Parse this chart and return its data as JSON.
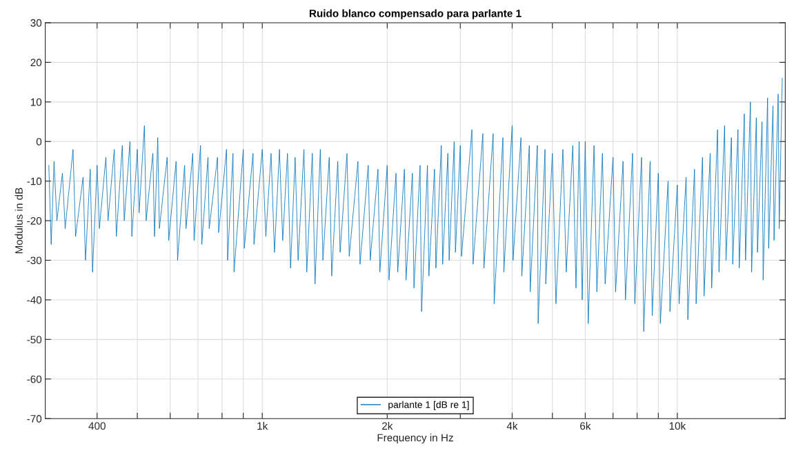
{
  "chart_data": {
    "type": "line",
    "title": "Ruido blanco compensado para parlante 1",
    "xlabel": "Frequency in Hz",
    "ylabel": "Modulus in dB",
    "log": "x",
    "grid": true,
    "legend": "bottom",
    "line_style": "solid",
    "marker": "none",
    "xlim": [
      300,
      18200
    ],
    "ylim": [
      -70,
      30
    ],
    "xticks": [
      {
        "value": 400,
        "label": "400"
      },
      {
        "value": 500,
        "label": null
      },
      {
        "value": 600,
        "label": null
      },
      {
        "value": 700,
        "label": null
      },
      {
        "value": 800,
        "label": null
      },
      {
        "value": 900,
        "label": null
      },
      {
        "value": 1000,
        "label": "1k"
      },
      {
        "value": 2000,
        "label": "2k"
      },
      {
        "value": 3000,
        "label": null
      },
      {
        "value": 4000,
        "label": "4k"
      },
      {
        "value": 5000,
        "label": null
      },
      {
        "value": 6000,
        "label": "6k"
      },
      {
        "value": 7000,
        "label": null
      },
      {
        "value": 8000,
        "label": null
      },
      {
        "value": 9000,
        "label": null
      },
      {
        "value": 10000,
        "label": "10k"
      }
    ],
    "yticks": [
      -70,
      -60,
      -50,
      -40,
      -30,
      -20,
      -10,
      0,
      10,
      20,
      30
    ],
    "series": [
      {
        "name": "parlante 1 [dB re 1]",
        "color": "#0072bd",
        "x": [
          306,
          310,
          315,
          320,
          330,
          335,
          350,
          355,
          370,
          375,
          385,
          390,
          400,
          405,
          420,
          425,
          440,
          445,
          460,
          465,
          480,
          485,
          500,
          505,
          520,
          525,
          545,
          550,
          560,
          565,
          590,
          595,
          620,
          625,
          650,
          655,
          680,
          685,
          710,
          715,
          740,
          745,
          780,
          785,
          820,
          825,
          850,
          855,
          900,
          905,
          950,
          955,
          1000,
          1020,
          1050,
          1070,
          1100,
          1120,
          1150,
          1170,
          1200,
          1220,
          1260,
          1280,
          1320,
          1340,
          1380,
          1400,
          1450,
          1470,
          1520,
          1540,
          1600,
          1620,
          1700,
          1720,
          1800,
          1820,
          1900,
          1920,
          2000,
          2020,
          2100,
          2120,
          2200,
          2220,
          2300,
          2320,
          2400,
          2420,
          2500,
          2520,
          2600,
          2620,
          2700,
          2720,
          2800,
          2820,
          2900,
          2920,
          3000,
          3020,
          3200,
          3220,
          3400,
          3420,
          3600,
          3620,
          3800,
          3820,
          4000,
          4020,
          4200,
          4220,
          4400,
          4420,
          4600,
          4620,
          4800,
          4820,
          5000,
          5100,
          5300,
          5400,
          5600,
          5700,
          5800,
          5900,
          6000,
          6100,
          6300,
          6400,
          6600,
          6700,
          7000,
          7100,
          7400,
          7500,
          7800,
          7900,
          8200,
          8300,
          8600,
          8700,
          9000,
          9100,
          9500,
          9600,
          10000,
          10100,
          10500,
          10600,
          11000,
          11100,
          11500,
          11600,
          12000,
          12100,
          12500,
          12600,
          13000,
          13100,
          13500,
          13600,
          14000,
          14100,
          14500,
          14600,
          15000,
          15100,
          15500,
          15600,
          16000,
          16100,
          16500,
          16600,
          17000,
          17100,
          17500,
          17600,
          17900
        ],
        "values": [
          -6,
          -26,
          -5,
          -20,
          -8,
          -22,
          -2,
          -24,
          -9,
          -30,
          -7,
          -33,
          -6,
          -22,
          -4,
          -20,
          -2,
          -24,
          -1,
          -20,
          0,
          -24,
          -2,
          -18,
          4,
          -20,
          -3,
          -24,
          1,
          -22,
          -4,
          -25,
          -5,
          -30,
          -6,
          -22,
          -3,
          -25,
          -1,
          -26,
          -4,
          -22,
          -4,
          -23,
          -2,
          -30,
          -3,
          -33,
          -2,
          -27,
          -3,
          -26,
          -2,
          -24,
          -3,
          -28,
          -2,
          -25,
          -3,
          -32,
          -4,
          -30,
          -2,
          -33,
          -3,
          -36,
          -2,
          -30,
          -4,
          -34,
          -5,
          -28,
          -3,
          -29,
          -5,
          -31,
          -6,
          -30,
          -7,
          -33,
          -6,
          -35,
          -8,
          -33,
          -7,
          -35,
          -8,
          -37,
          -6,
          -43,
          -6,
          -34,
          -7,
          -32,
          -1,
          -31,
          -3,
          -30,
          0,
          -28,
          -1,
          -29,
          3,
          -31,
          2,
          -32,
          2,
          -41,
          1,
          -33,
          4,
          -30,
          1,
          -34,
          -1,
          -38,
          -1,
          -46,
          -2,
          -36,
          -3,
          -41,
          -2,
          -33,
          -1,
          -37,
          0,
          -40,
          0,
          -46,
          -1,
          -38,
          -3,
          -36,
          -4,
          -38,
          -5,
          -40,
          -3,
          -41,
          -4,
          -48,
          -5,
          -44,
          -8,
          -46,
          -10,
          -43,
          -11,
          -41,
          -9,
          -45,
          -7,
          -41,
          -4,
          -39,
          -3,
          -37,
          3,
          -33,
          4,
          -30,
          1,
          -31,
          3,
          -32,
          7,
          -30,
          10,
          -33,
          6,
          -28,
          5,
          -35,
          11,
          -27,
          9,
          -25,
          12,
          -22,
          16
        ]
      }
    ]
  }
}
